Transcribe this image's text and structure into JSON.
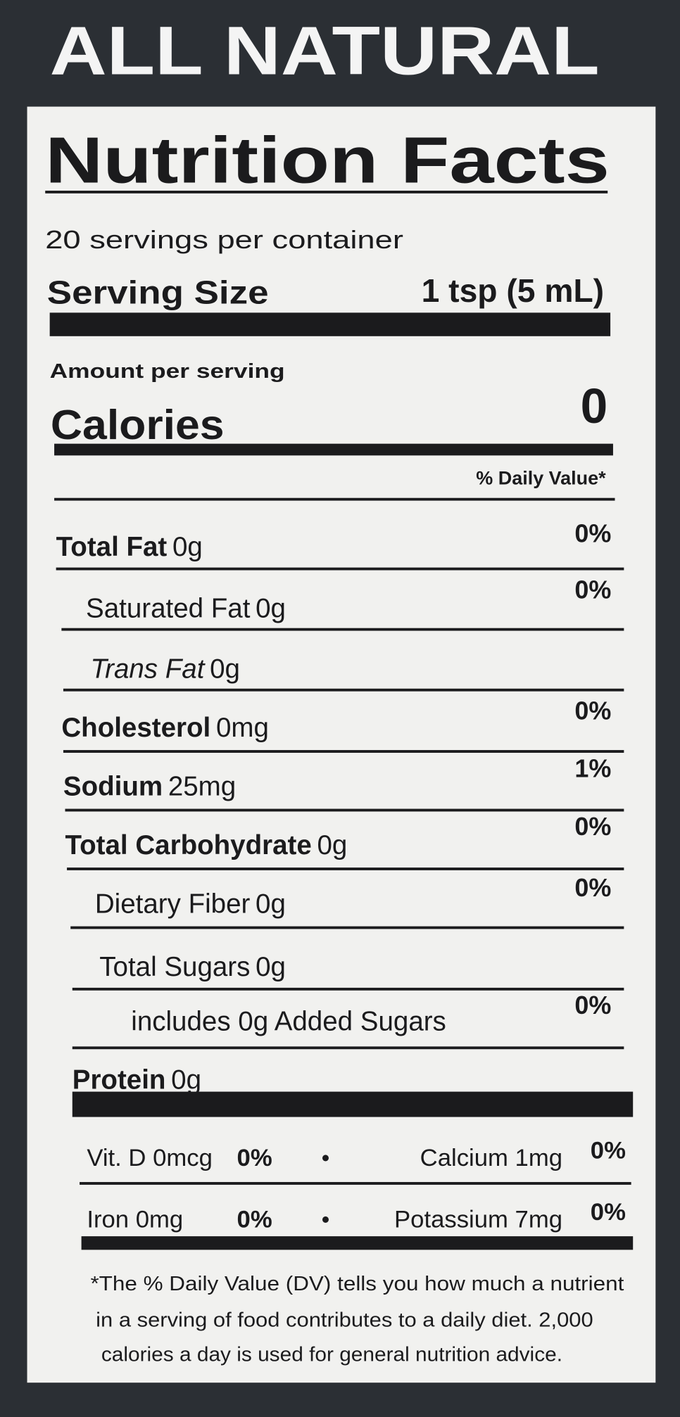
{
  "header": {
    "title": "ALL NATURAL"
  },
  "label": {
    "title": "Nutrition Facts",
    "servings": "20 servings per container",
    "serving_size_label": "Serving Size",
    "serving_size": "1 tsp (5 mL)",
    "amount_per_serving": "Amount per serving",
    "calories_label": "Calories",
    "calories": "0",
    "daily_value_header": "% Daily Value*",
    "nutrients": [
      {
        "name": "Total Fat",
        "amount": "0g",
        "dv": "0%"
      },
      {
        "name": "Saturated Fat",
        "amount": "0g",
        "dv": "0%"
      },
      {
        "name": "Trans Fat",
        "amount": "0g"
      },
      {
        "name": "Cholesterol",
        "amount": "0mg",
        "dv": "0%"
      },
      {
        "name": "Sodium",
        "amount": "25mg",
        "dv": "1%"
      },
      {
        "name": "Total Carbohydrate",
        "amount": "0g",
        "dv": "0%"
      },
      {
        "name": "Dietary Fiber",
        "amount": "0g",
        "dv": "0%"
      },
      {
        "name": "Total Sugars",
        "amount": "0g"
      },
      {
        "name": "includes 0g Added Sugars",
        "dv": "0%"
      },
      {
        "name": "Protein",
        "amount": "0g"
      }
    ],
    "micronutrients": [
      [
        {
          "name": "Vit. D 0mcg",
          "dv": "0%"
        },
        {
          "name": "Calcium 1mg",
          "dv": "0%"
        }
      ],
      [
        {
          "name": "Iron 0mg",
          "dv": "0%"
        },
        {
          "name": "Potassium 7mg",
          "dv": "0%"
        }
      ]
    ],
    "separator": "•",
    "footnote": [
      "*The % Daily Value (DV) tells you how much a nutrient",
      "in a serving of food contributes to a daily diet. 2,000",
      "calories a day is used for general nutrition advice."
    ]
  }
}
